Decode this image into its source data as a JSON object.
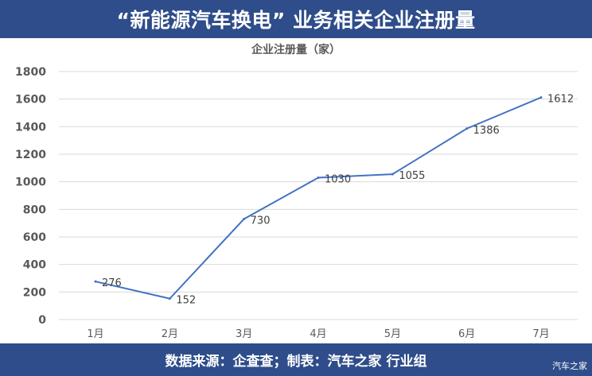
{
  "header": {
    "title": "“新能源汽车换电” 业务相关企业注册量"
  },
  "footer": {
    "source": "数据来源：企查查；制表：汽车之家 行业组",
    "watermark": "汽车之家"
  },
  "chart_data": {
    "type": "line",
    "title": "企业注册量（家）",
    "categories": [
      "1月",
      "2月",
      "3月",
      "4月",
      "5月",
      "6月",
      "7月"
    ],
    "series": [
      {
        "values": [
          276,
          152,
          730,
          1030,
          1055,
          1386,
          1612
        ]
      }
    ],
    "ylim": [
      0,
      1800
    ],
    "yticks": [
      0,
      200,
      400,
      600,
      800,
      1000,
      1200,
      1400,
      1600,
      1800
    ],
    "grid": true,
    "data_labels": true,
    "colors": {
      "line": "#4472c4",
      "grid": "#d9d9d9",
      "tick_text": "#595959",
      "header_bg": "#2e4d8a"
    }
  }
}
